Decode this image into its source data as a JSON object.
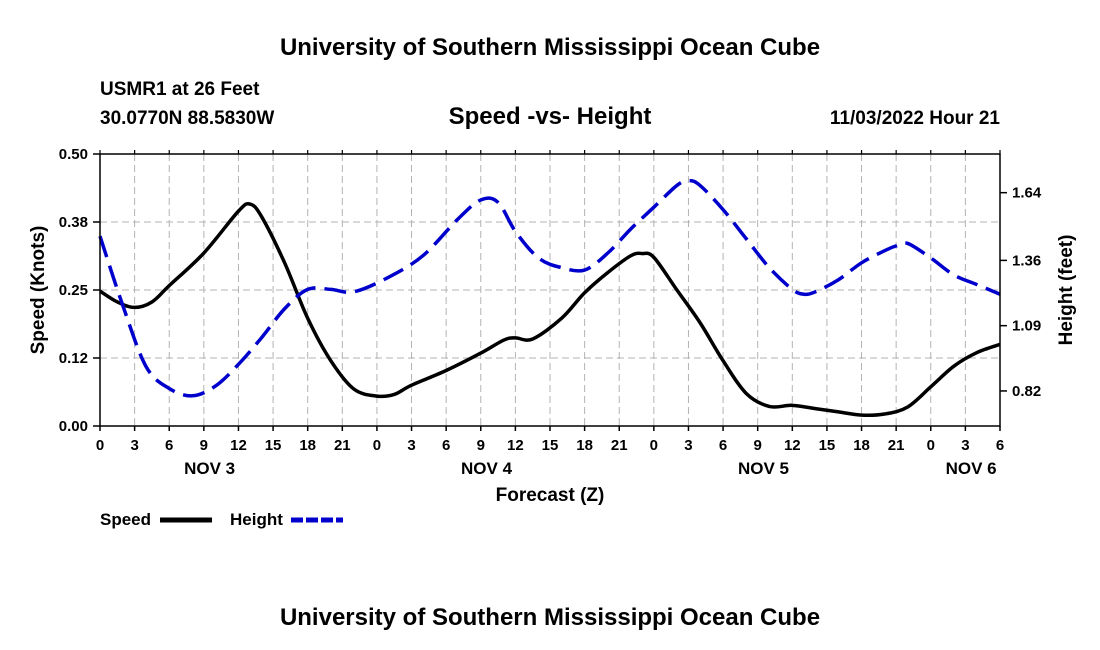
{
  "chart_data": {
    "type": "line",
    "title": "University of Southern Mississippi Ocean Cube",
    "station_line1": "USMR1 at 26 Feet",
    "station_line2": "30.0770N  88.5830W",
    "subtitle": "Speed -vs- Height",
    "timestamp": "11/03/2022 Hour 21",
    "xlabel": "Forecast (Z)",
    "ylabel_left": "Speed (Knots)",
    "ylabel_right": "Height (feet)",
    "x_range": [
      0,
      78
    ],
    "x_ticks": [
      {
        "x": 0,
        "label": "0"
      },
      {
        "x": 3,
        "label": "3"
      },
      {
        "x": 6,
        "label": "6"
      },
      {
        "x": 9,
        "label": "9"
      },
      {
        "x": 12,
        "label": "12"
      },
      {
        "x": 15,
        "label": "15"
      },
      {
        "x": 18,
        "label": "18"
      },
      {
        "x": 21,
        "label": "21"
      },
      {
        "x": 24,
        "label": "0"
      },
      {
        "x": 27,
        "label": "3"
      },
      {
        "x": 30,
        "label": "6"
      },
      {
        "x": 33,
        "label": "9"
      },
      {
        "x": 36,
        "label": "12"
      },
      {
        "x": 39,
        "label": "15"
      },
      {
        "x": 42,
        "label": "18"
      },
      {
        "x": 45,
        "label": "21"
      },
      {
        "x": 48,
        "label": "0"
      },
      {
        "x": 51,
        "label": "3"
      },
      {
        "x": 54,
        "label": "6"
      },
      {
        "x": 57,
        "label": "9"
      },
      {
        "x": 60,
        "label": "12"
      },
      {
        "x": 63,
        "label": "15"
      },
      {
        "x": 66,
        "label": "18"
      },
      {
        "x": 69,
        "label": "21"
      },
      {
        "x": 72,
        "label": "0"
      },
      {
        "x": 75,
        "label": "3"
      },
      {
        "x": 78,
        "label": "6"
      }
    ],
    "date_labels": [
      {
        "x": 9.5,
        "label": "NOV 3"
      },
      {
        "x": 33.5,
        "label": "NOV 4"
      },
      {
        "x": 57.5,
        "label": "NOV 5"
      },
      {
        "x": 75.5,
        "label": "NOV 6"
      }
    ],
    "y_left": {
      "range": [
        0,
        0.5
      ],
      "ticks": [
        0.0,
        0.125,
        0.25,
        0.375,
        0.5
      ],
      "tick_labels": [
        "0.00",
        "0.12",
        "0.25",
        "0.38",
        "0.50"
      ]
    },
    "y_right": {
      "range": [
        0.675,
        1.8
      ],
      "ticks": [
        0.82,
        1.09,
        1.36,
        1.64
      ],
      "tick_labels": [
        "0.82",
        "1.09",
        "1.36",
        "1.64"
      ]
    },
    "grid": true,
    "series": [
      {
        "name": "Speed",
        "axis": "left",
        "color": "#000000",
        "dash": "solid",
        "x": [
          0,
          1.5,
          3,
          4.5,
          6,
          9,
          12,
          13,
          14,
          16,
          18,
          20,
          22,
          24,
          25.5,
          27,
          30,
          33,
          35,
          36,
          37.5,
          40,
          42,
          44,
          46,
          47,
          48,
          50,
          52,
          54,
          56,
          58,
          60,
          62,
          64,
          66,
          68,
          70,
          72,
          74,
          76,
          78
        ],
        "values": [
          0.248,
          0.228,
          0.218,
          0.228,
          0.258,
          0.318,
          0.395,
          0.408,
          0.385,
          0.3,
          0.198,
          0.12,
          0.068,
          0.055,
          0.058,
          0.075,
          0.102,
          0.134,
          0.158,
          0.162,
          0.16,
          0.198,
          0.245,
          0.282,
          0.313,
          0.317,
          0.31,
          0.25,
          0.19,
          0.12,
          0.06,
          0.036,
          0.038,
          0.032,
          0.026,
          0.02,
          0.022,
          0.035,
          0.072,
          0.11,
          0.135,
          0.15
        ]
      },
      {
        "name": "Height",
        "axis": "right",
        "color": "#0000cc",
        "dash": "dashed",
        "x": [
          0,
          2,
          4,
          6,
          8,
          10,
          12,
          14,
          16,
          18,
          20,
          22,
          25,
          28,
          31,
          33,
          34.5,
          36,
          38,
          40,
          42,
          44,
          46,
          48,
          50,
          51,
          52,
          54,
          56,
          58,
          60,
          61,
          62,
          64,
          66,
          68,
          69,
          70,
          72,
          74,
          76,
          78
        ],
        "values": [
          1.46,
          1.17,
          0.92,
          0.83,
          0.8,
          0.84,
          0.93,
          1.04,
          1.16,
          1.24,
          1.24,
          1.23,
          1.29,
          1.38,
          1.53,
          1.61,
          1.6,
          1.48,
          1.37,
          1.33,
          1.32,
          1.39,
          1.49,
          1.58,
          1.67,
          1.69,
          1.67,
          1.57,
          1.45,
          1.33,
          1.24,
          1.22,
          1.23,
          1.28,
          1.35,
          1.4,
          1.42,
          1.43,
          1.37,
          1.3,
          1.26,
          1.22
        ]
      }
    ]
  },
  "legend": {
    "speed_label": "Speed",
    "height_label": "Height"
  },
  "footer": {
    "title": "University of Southern Mississippi Ocean Cube"
  }
}
